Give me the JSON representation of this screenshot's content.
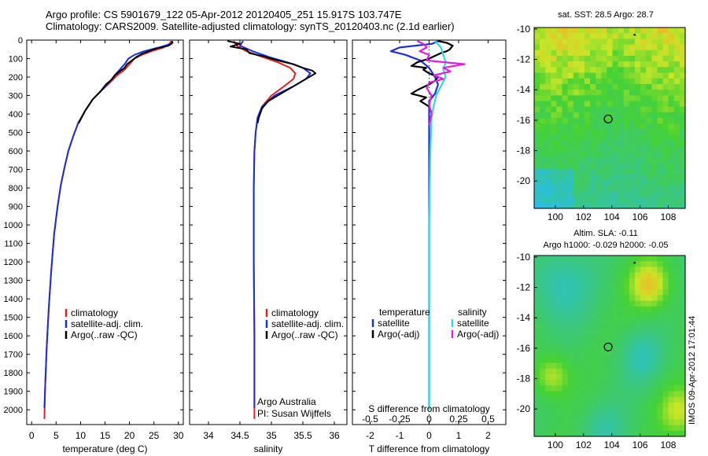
{
  "header": {
    "title_line1": "Argo profile: CS 5901679_122 05-Apr-2012 20120405_251 15.917S 103.747E",
    "title_line2": "Climatology: CARS2009. Satellite-adjusted climatology: synTS_20120403.nc (2.1d earlier)"
  },
  "side_text": "IMOS 09-Apr-2012 17:01:44",
  "colors": {
    "climatology": "#e82020",
    "satellite": "#1a2ee0",
    "argo": "#000000",
    "salinity_satellite": "#30d8e0",
    "salinity_argo": "#e020e0"
  },
  "chart_data": [
    {
      "id": "temperature",
      "type": "line",
      "xlabel": "temperature (deg C)",
      "ylabel": "",
      "xlim": [
        -1,
        31
      ],
      "ylim": [
        2080,
        0
      ],
      "y_reversed": true,
      "xticks": [
        0,
        5,
        10,
        15,
        20,
        25,
        30
      ],
      "yticks": [
        0,
        100,
        200,
        300,
        400,
        500,
        600,
        700,
        800,
        900,
        1000,
        1100,
        1200,
        1300,
        1400,
        1500,
        1600,
        1700,
        1800,
        1900,
        2000
      ],
      "legend": {
        "placement": "lower-center",
        "entries": [
          "climatology",
          "satellite-adj. clim.",
          "Argo(..raw -QC)"
        ]
      },
      "series": [
        {
          "name": "climatology",
          "color": "#e82020",
          "points": [
            [
              28.5,
              5
            ],
            [
              28.2,
              20
            ],
            [
              27.0,
              40
            ],
            [
              24.5,
              60
            ],
            [
              22.5,
              80
            ],
            [
              21.0,
              100
            ],
            [
              20.0,
              130
            ],
            [
              19.0,
              160
            ],
            [
              17.5,
              190
            ],
            [
              16.0,
              230
            ],
            [
              14.0,
              280
            ],
            [
              12.5,
              320
            ],
            [
              11.0,
              380
            ],
            [
              9.5,
              450
            ],
            [
              8.5,
              520
            ],
            [
              7.5,
              600
            ],
            [
              6.8,
              680
            ],
            [
              6.0,
              780
            ],
            [
              5.3,
              900
            ],
            [
              4.6,
              1050
            ],
            [
              4.0,
              1250
            ],
            [
              3.5,
              1450
            ],
            [
              3.1,
              1650
            ],
            [
              2.8,
              1850
            ],
            [
              2.6,
              2050
            ]
          ]
        },
        {
          "name": "satellite-adj. clim.",
          "color": "#1a2ee0",
          "points": [
            [
              28.8,
              5
            ],
            [
              28.5,
              20
            ],
            [
              26.0,
              40
            ],
            [
              23.0,
              60
            ],
            [
              21.0,
              80
            ],
            [
              19.8,
              100
            ],
            [
              19.0,
              130
            ],
            [
              18.0,
              160
            ],
            [
              17.0,
              190
            ],
            [
              15.8,
              230
            ],
            [
              14.0,
              280
            ],
            [
              12.5,
              320
            ],
            [
              11.0,
              380
            ],
            [
              9.5,
              450
            ],
            [
              8.5,
              520
            ],
            [
              7.5,
              600
            ],
            [
              6.8,
              680
            ],
            [
              6.0,
              780
            ],
            [
              5.3,
              900
            ],
            [
              4.6,
              1050
            ],
            [
              4.0,
              1250
            ],
            [
              3.5,
              1450
            ],
            [
              3.1,
              1650
            ],
            [
              2.8,
              1850
            ],
            [
              2.6,
              1990
            ]
          ]
        },
        {
          "name": "Argo(..raw -QC)",
          "color": "#000000",
          "points": [
            [
              28.7,
              5
            ],
            [
              28.8,
              15
            ],
            [
              28.0,
              30
            ],
            [
              25.5,
              45
            ],
            [
              24.0,
              60
            ],
            [
              22.5,
              75
            ],
            [
              21.5,
              90
            ],
            [
              20.5,
              110
            ],
            [
              19.5,
              130
            ],
            [
              19.0,
              150
            ],
            [
              18.2,
              165
            ],
            [
              17.0,
              190
            ],
            [
              16.5,
              210
            ],
            [
              15.2,
              240
            ],
            [
              14.0,
              280
            ],
            [
              12.5,
              320
            ],
            [
              11.0,
              380
            ],
            [
              9.6,
              450
            ]
          ]
        }
      ]
    },
    {
      "id": "salinity",
      "type": "line",
      "xlabel": "salinity",
      "ylabel": "",
      "xlim": [
        33.7,
        36.2
      ],
      "ylim": [
        2080,
        0
      ],
      "y_reversed": true,
      "xticks": [
        34,
        34.5,
        35,
        35.5,
        36
      ],
      "legend": {
        "placement": "lower-center",
        "entries": [
          "climatology",
          "satellite-adj. clim.",
          "Argo(..raw -QC)"
        ]
      },
      "annotations": [
        "Argo Australia",
        "PI: Susan Wijffels"
      ],
      "series": [
        {
          "name": "climatology",
          "color": "#e82020",
          "points": [
            [
              34.4,
              5
            ],
            [
              34.45,
              30
            ],
            [
              34.6,
              60
            ],
            [
              34.85,
              90
            ],
            [
              35.1,
              120
            ],
            [
              35.3,
              150
            ],
            [
              35.38,
              180
            ],
            [
              35.35,
              210
            ],
            [
              35.2,
              250
            ],
            [
              35.0,
              300
            ],
            [
              34.85,
              360
            ],
            [
              34.78,
              420
            ],
            [
              34.75,
              500
            ],
            [
              34.73,
              600
            ],
            [
              34.72,
              800
            ],
            [
              34.72,
              1200
            ],
            [
              34.73,
              1600
            ],
            [
              34.73,
              2050
            ]
          ]
        },
        {
          "name": "satellite-adj. clim.",
          "color": "#1a2ee0",
          "points": [
            [
              34.55,
              5
            ],
            [
              34.5,
              30
            ],
            [
              34.7,
              60
            ],
            [
              34.95,
              90
            ],
            [
              35.25,
              120
            ],
            [
              35.5,
              150
            ],
            [
              35.62,
              180
            ],
            [
              35.55,
              210
            ],
            [
              35.35,
              250
            ],
            [
              35.05,
              300
            ],
            [
              34.85,
              360
            ],
            [
              34.78,
              420
            ],
            [
              34.75,
              500
            ],
            [
              34.73,
              600
            ],
            [
              34.72,
              800
            ],
            [
              34.72,
              1200
            ],
            [
              34.73,
              1600
            ],
            [
              34.73,
              1990
            ]
          ]
        },
        {
          "name": "Argo(..raw -QC)",
          "color": "#000000",
          "points": [
            [
              34.3,
              5
            ],
            [
              34.5,
              20
            ],
            [
              34.35,
              35
            ],
            [
              34.6,
              50
            ],
            [
              34.65,
              70
            ],
            [
              34.9,
              90
            ],
            [
              35.1,
              110
            ],
            [
              35.35,
              130
            ],
            [
              35.5,
              150
            ],
            [
              35.65,
              165
            ],
            [
              35.7,
              180
            ],
            [
              35.6,
              200
            ],
            [
              35.5,
              220
            ],
            [
              35.35,
              250
            ],
            [
              35.15,
              290
            ],
            [
              34.95,
              330
            ],
            [
              34.85,
              370
            ],
            [
              34.8,
              420
            ],
            [
              34.78,
              450
            ]
          ]
        }
      ]
    },
    {
      "id": "differences",
      "type": "line",
      "xlabel": "T difference from climatology",
      "x2label": "S difference from climatology",
      "xlim": [
        -2.6,
        2.6
      ],
      "x2lim": [
        -0.65,
        0.65
      ],
      "ylim": [
        2080,
        0
      ],
      "y_reversed": true,
      "xticks": [
        -2,
        -1,
        0,
        1,
        2
      ],
      "x2ticks": [
        -0.5,
        -0.25,
        0,
        0.25,
        0.5
      ],
      "x2ticklabels": [
        "-0.5",
        "-0.25",
        "0",
        "0.25",
        "0.5"
      ],
      "legend_titles": [
        "temperature",
        "salinity"
      ],
      "legend": {
        "placement": "lower-center",
        "entries": [
          "satellite",
          "Argo(-adj)",
          "satellite",
          "Argo(-adj)"
        ]
      },
      "series": [
        {
          "name": "satellite",
          "group": "temperature",
          "axis": "T",
          "color": "#1a2ee0",
          "points": [
            [
              0.3,
              5
            ],
            [
              0.1,
              20
            ],
            [
              -1.0,
              40
            ],
            [
              -1.3,
              60
            ],
            [
              -0.8,
              80
            ],
            [
              -0.3,
              110
            ],
            [
              0.0,
              150
            ],
            [
              0.2,
              200
            ],
            [
              0.3,
              240
            ],
            [
              0.2,
              290
            ],
            [
              0.0,
              330
            ],
            [
              0.0,
              400
            ],
            [
              0.0,
              600
            ],
            [
              0.0,
              2000
            ]
          ]
        },
        {
          "name": "Argo(-adj)",
          "group": "temperature",
          "axis": "T",
          "color": "#000000",
          "points": [
            [
              0.3,
              5
            ],
            [
              0.6,
              15
            ],
            [
              0.8,
              30
            ],
            [
              0.7,
              50
            ],
            [
              0.6,
              60
            ],
            [
              0.4,
              70
            ],
            [
              0.2,
              85
            ],
            [
              0.0,
              100
            ],
            [
              -0.4,
              120
            ],
            [
              -0.6,
              140
            ],
            [
              -0.1,
              150
            ],
            [
              -0.2,
              160
            ],
            [
              0.0,
              180
            ],
            [
              0.3,
              200
            ],
            [
              0.2,
              220
            ],
            [
              0.0,
              240
            ],
            [
              -0.4,
              270
            ],
            [
              -0.6,
              290
            ],
            [
              -0.1,
              310
            ],
            [
              -0.3,
              330
            ],
            [
              0.0,
              360
            ],
            [
              0.1,
              400
            ],
            [
              0.0,
              450
            ]
          ]
        },
        {
          "name": "satellite",
          "group": "salinity",
          "axis": "S",
          "color": "#30d8e0",
          "points": [
            [
              0.05,
              5
            ],
            [
              0.1,
              40
            ],
            [
              0.12,
              80
            ],
            [
              0.14,
              120
            ],
            [
              0.12,
              160
            ],
            [
              0.14,
              200
            ],
            [
              0.1,
              250
            ],
            [
              0.06,
              300
            ],
            [
              0.04,
              350
            ],
            [
              0.02,
              420
            ],
            [
              0.01,
              600
            ],
            [
              0.0,
              1000
            ],
            [
              0.0,
              2000
            ]
          ]
        },
        {
          "name": "Argo(-adj)",
          "group": "salinity",
          "axis": "S",
          "color": "#e020e0",
          "points": [
            [
              -0.1,
              5
            ],
            [
              -0.05,
              20
            ],
            [
              -0.02,
              40
            ],
            [
              -0.08,
              60
            ],
            [
              0.0,
              80
            ],
            [
              -0.02,
              110
            ],
            [
              0.3,
              130
            ],
            [
              0.12,
              150
            ],
            [
              0.18,
              170
            ],
            [
              0.04,
              190
            ],
            [
              0.12,
              210
            ],
            [
              0.0,
              230
            ],
            [
              -0.02,
              260
            ],
            [
              0.02,
              300
            ],
            [
              0.0,
              350
            ],
            [
              0.02,
              400
            ],
            [
              0.0,
              460
            ]
          ]
        }
      ]
    },
    {
      "id": "sst-map",
      "type": "heatmap",
      "title": "sat. SST: 28.5 Argo: 28.7",
      "xlim": [
        98.5,
        109.2
      ],
      "ylim": [
        -21.8,
        -9.9
      ],
      "xticks": [
        100,
        102,
        104,
        106,
        108
      ],
      "yticks": [
        -10,
        -12,
        -14,
        -16,
        -18,
        -20
      ],
      "marker": {
        "lon": 103.747,
        "lat": -15.917
      }
    },
    {
      "id": "sla-map",
      "type": "heatmap",
      "title": "Altim. SLA: -0.11",
      "subtitle": "Argo h1000: -0.029 h2000: -0.05",
      "xlim": [
        98.5,
        109.2
      ],
      "ylim": [
        -21.8,
        -9.9
      ],
      "xticks": [
        100,
        102,
        104,
        106,
        108
      ],
      "yticks": [
        -10,
        -12,
        -14,
        -16,
        -18,
        -20
      ],
      "marker": {
        "lon": 103.747,
        "lat": -15.917
      }
    }
  ]
}
